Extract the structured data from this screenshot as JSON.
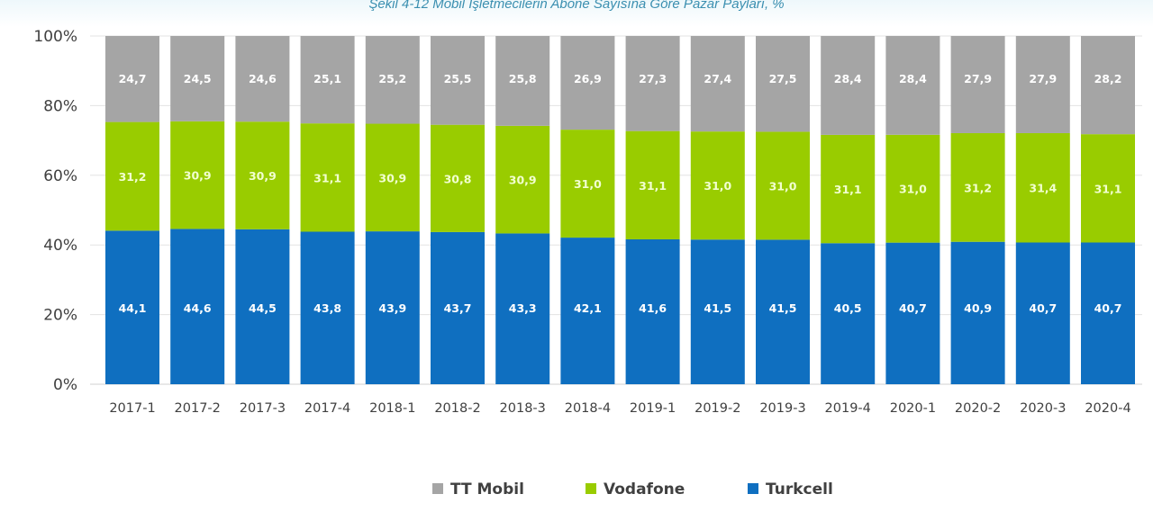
{
  "chart_data": {
    "type": "bar",
    "stacked": true,
    "title": "Şekil 4-12 Mobil İşletmecilerin Abone Sayısına Göre Pazar Payları, %",
    "xlabel": "",
    "ylabel": "",
    "ylim": [
      0,
      100
    ],
    "yticks": [
      "0%",
      "20%",
      "40%",
      "60%",
      "80%",
      "100%"
    ],
    "grid": true,
    "legend_position": "bottom",
    "categories": [
      "2017-1",
      "2017-2",
      "2017-3",
      "2017-4",
      "2018-1",
      "2018-2",
      "2018-3",
      "2018-4",
      "2019-1",
      "2019-2",
      "2019-3",
      "2019-4",
      "2020-1",
      "2020-2",
      "2020-3",
      "2020-4"
    ],
    "series": [
      {
        "name": "Turkcell",
        "color": "#0f6fc0",
        "label_color": "#ffffff",
        "values": [
          44.1,
          44.6,
          44.5,
          43.8,
          43.9,
          43.7,
          43.3,
          42.1,
          41.6,
          41.5,
          41.5,
          40.5,
          40.7,
          40.9,
          40.7,
          40.7
        ],
        "labels": [
          "44,1",
          "44,6",
          "44,5",
          "43,8",
          "43,9",
          "43,7",
          "43,3",
          "42,1",
          "41,6",
          "41,5",
          "41,5",
          "40,5",
          "40,7",
          "40,9",
          "40,7",
          "40,7"
        ]
      },
      {
        "name": "Vodafone",
        "color": "#99cc00",
        "label_color": "#f2ffd0",
        "values": [
          31.2,
          30.9,
          30.9,
          31.1,
          30.9,
          30.8,
          30.9,
          31.0,
          31.1,
          31.0,
          31.0,
          31.1,
          31.0,
          31.2,
          31.4,
          31.1
        ],
        "labels": [
          "31,2",
          "30,9",
          "30,9",
          "31,1",
          "30,9",
          "30,8",
          "30,9",
          "31,0",
          "31,1",
          "31,0",
          "31,0",
          "31,1",
          "31,0",
          "31,2",
          "31,4",
          "31,1"
        ]
      },
      {
        "name": "TT Mobil",
        "color": "#a5a5a5",
        "label_color": "#ffffff",
        "values": [
          24.7,
          24.5,
          24.6,
          25.1,
          25.2,
          25.5,
          25.8,
          26.9,
          27.3,
          27.4,
          27.5,
          28.4,
          28.4,
          27.9,
          27.9,
          28.2
        ],
        "labels": [
          "24,7",
          "24,5",
          "24,6",
          "25,1",
          "25,2",
          "25,5",
          "25,8",
          "26,9",
          "27,3",
          "27,4",
          "27,5",
          "28,4",
          "28,4",
          "27,9",
          "27,9",
          "28,2"
        ]
      }
    ],
    "legend_order": [
      "TT Mobil",
      "Vodafone",
      "Turkcell"
    ]
  }
}
